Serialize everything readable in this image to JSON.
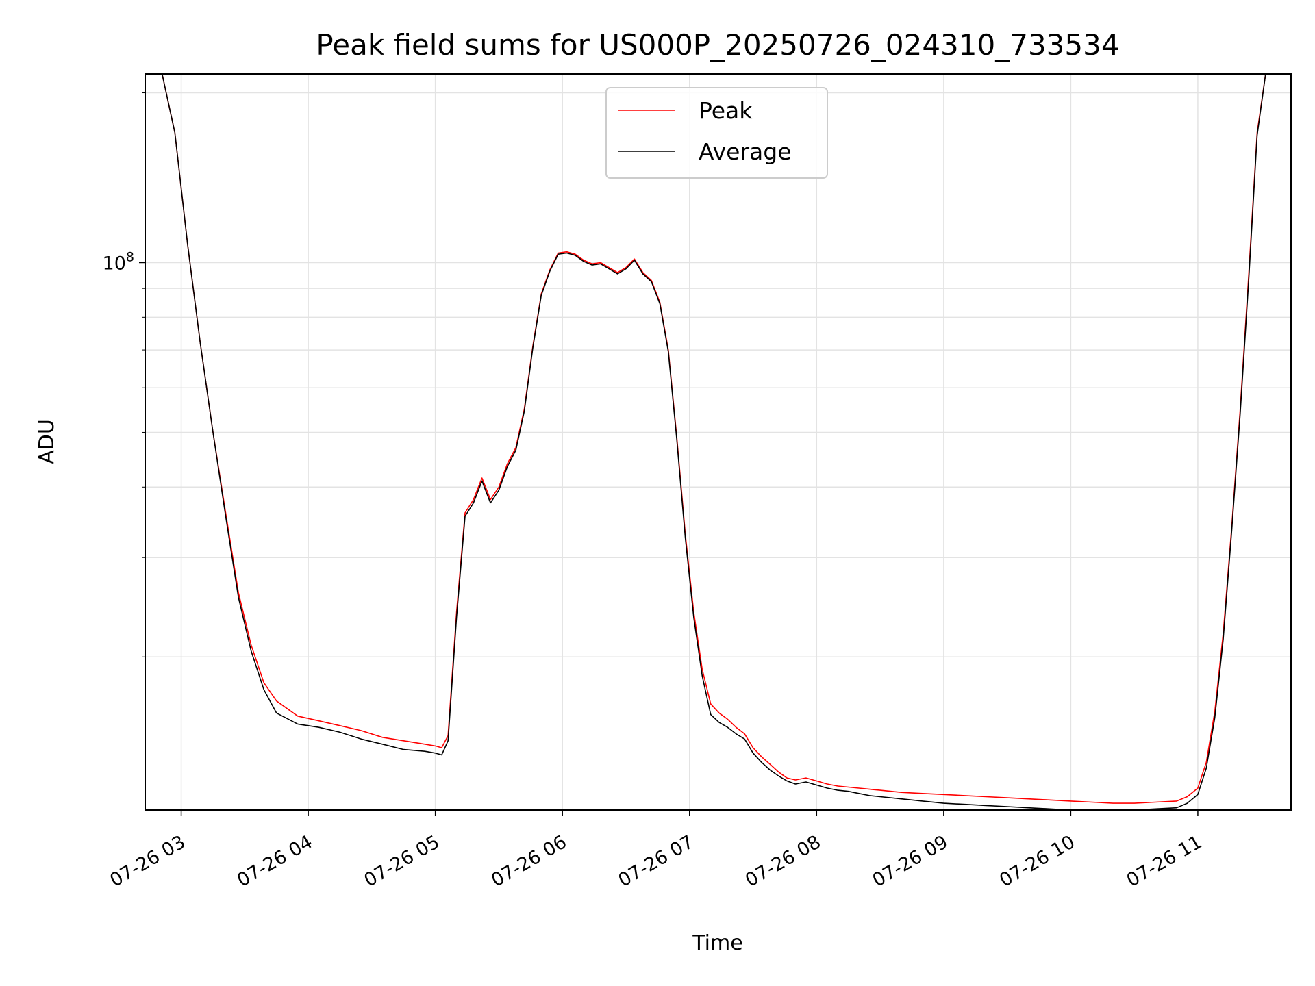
{
  "chart_data": {
    "type": "line",
    "title": "Peak field sums for US000P_20250726_024310_733534",
    "xlabel": "Time",
    "ylabel": "ADU",
    "x_tick_labels": [
      "07-26 03",
      "07-26 04",
      "07-26 05",
      "07-26 06",
      "07-26 07",
      "07-26 08",
      "07-26 09",
      "07-26 10",
      "07-26 11"
    ],
    "xlim": [
      "2025-07-26 02:43",
      "2025-07-26 11:44"
    ],
    "y_scale": "log",
    "ylim": [
      10700000,
      216000000
    ],
    "y_major_tick_label": "10^8",
    "grid": true,
    "legend": {
      "placement": "upper center",
      "entries": [
        "Peak",
        "Average"
      ]
    },
    "colors": {
      "Peak": "#ff0000",
      "Average": "#000000"
    },
    "series": [
      {
        "name": "Peak",
        "color": "#ff0000",
        "x": [
          "02:43",
          "02:51",
          "02:57",
          "03:03",
          "03:09",
          "03:15",
          "03:21",
          "03:27",
          "03:33",
          "03:39",
          "03:45",
          "03:55",
          "04:05",
          "04:15",
          "04:25",
          "04:35",
          "04:45",
          "04:55",
          "05:00",
          "05:03",
          "05:06",
          "05:10",
          "05:14",
          "05:18",
          "05:22",
          "05:26",
          "05:30",
          "05:34",
          "05:38",
          "05:42",
          "05:46",
          "05:50",
          "05:54",
          "05:58",
          "06:02",
          "06:06",
          "06:10",
          "06:14",
          "06:18",
          "06:22",
          "06:26",
          "06:30",
          "06:34",
          "06:38",
          "06:42",
          "06:46",
          "06:50",
          "06:54",
          "06:58",
          "07:02",
          "07:06",
          "07:10",
          "07:14",
          "07:18",
          "07:22",
          "07:26",
          "07:30",
          "07:34",
          "07:38",
          "07:42",
          "07:46",
          "07:50",
          "07:55",
          "08:00",
          "08:05",
          "08:10",
          "08:15",
          "08:20",
          "08:25",
          "08:30",
          "08:40",
          "08:50",
          "09:00",
          "09:10",
          "09:20",
          "09:30",
          "09:40",
          "09:50",
          "10:00",
          "10:10",
          "10:20",
          "10:30",
          "10:40",
          "10:50",
          "10:55",
          "11:00",
          "11:04",
          "11:08",
          "11:12",
          "11:16",
          "11:20",
          "11:24",
          "11:28",
          "11:32",
          "11:36",
          "11:40",
          "11:44"
        ],
        "y": [
          216000000,
          216000000,
          170000000,
          108000000,
          72000000,
          50000000,
          36000000,
          26000000,
          21000000,
          18000000,
          16700000,
          15700000,
          15400000,
          15100000,
          14800000,
          14400000,
          14200000,
          14000000,
          13900000,
          13800000,
          14500000,
          24000000,
          36000000,
          38000000,
          41500000,
          38000000,
          40000000,
          44000000,
          47000000,
          55000000,
          71000000,
          88000000,
          97000000,
          104000000,
          104500000,
          103500000,
          101000000,
          99500000,
          100000000,
          98000000,
          96000000,
          98000000,
          101500000,
          96000000,
          93000000,
          85000000,
          70000000,
          49000000,
          33000000,
          24000000,
          19000000,
          16500000,
          15900000,
          15500000,
          15000000,
          14600000,
          13800000,
          13300000,
          12900000,
          12500000,
          12200000,
          12100000,
          12200000,
          12050000,
          11900000,
          11800000,
          11750000,
          11700000,
          11650000,
          11600000,
          11500000,
          11450000,
          11400000,
          11350000,
          11300000,
          11250000,
          11200000,
          11150000,
          11100000,
          11050000,
          11000000,
          11000000,
          11050000,
          11100000,
          11300000,
          11700000,
          13000000,
          16000000,
          22000000,
          34000000,
          55000000,
          95000000,
          170000000,
          216000000,
          216000000,
          216000000,
          216000000
        ]
      },
      {
        "name": "Average",
        "color": "#000000",
        "x": [
          "02:43",
          "02:51",
          "02:57",
          "03:03",
          "03:09",
          "03:15",
          "03:21",
          "03:27",
          "03:33",
          "03:39",
          "03:45",
          "03:55",
          "04:05",
          "04:15",
          "04:25",
          "04:35",
          "04:45",
          "04:55",
          "05:00",
          "05:03",
          "05:06",
          "05:10",
          "05:14",
          "05:18",
          "05:22",
          "05:26",
          "05:30",
          "05:34",
          "05:38",
          "05:42",
          "05:46",
          "05:50",
          "05:54",
          "05:58",
          "06:02",
          "06:06",
          "06:10",
          "06:14",
          "06:18",
          "06:22",
          "06:26",
          "06:30",
          "06:34",
          "06:38",
          "06:42",
          "06:46",
          "06:50",
          "06:54",
          "06:58",
          "07:02",
          "07:06",
          "07:10",
          "07:14",
          "07:18",
          "07:22",
          "07:26",
          "07:30",
          "07:34",
          "07:38",
          "07:42",
          "07:46",
          "07:50",
          "07:55",
          "08:00",
          "08:05",
          "08:10",
          "08:15",
          "08:20",
          "08:25",
          "08:30",
          "08:40",
          "08:50",
          "09:00",
          "09:10",
          "09:20",
          "09:30",
          "09:40",
          "09:50",
          "10:00",
          "10:10",
          "10:20",
          "10:30",
          "10:40",
          "10:50",
          "10:55",
          "11:00",
          "11:04",
          "11:08",
          "11:12",
          "11:16",
          "11:20",
          "11:24",
          "11:28",
          "11:32",
          "11:36",
          "11:40",
          "11:44"
        ],
        "y": [
          216000000,
          216000000,
          170000000,
          108000000,
          72000000,
          50000000,
          35500000,
          25500000,
          20500000,
          17500000,
          15900000,
          15200000,
          15000000,
          14700000,
          14300000,
          14000000,
          13700000,
          13600000,
          13500000,
          13400000,
          14200000,
          23500000,
          35500000,
          37500000,
          41000000,
          37500000,
          39500000,
          43500000,
          46500000,
          54500000,
          70500000,
          87500000,
          96500000,
          103500000,
          104000000,
          103000000,
          100500000,
          99000000,
          99500000,
          97500000,
          95500000,
          97500000,
          101000000,
          95500000,
          92500000,
          84500000,
          69500000,
          48500000,
          32500000,
          23500000,
          18500000,
          15800000,
          15300000,
          15000000,
          14600000,
          14300000,
          13500000,
          13000000,
          12600000,
          12300000,
          12050000,
          11900000,
          12000000,
          11850000,
          11700000,
          11600000,
          11550000,
          11450000,
          11350000,
          11300000,
          11200000,
          11100000,
          11000000,
          10950000,
          10900000,
          10850000,
          10800000,
          10750000,
          10700000,
          10700000,
          10700000,
          10700000,
          10750000,
          10800000,
          11000000,
          11400000,
          12700000,
          15600000,
          21500000,
          33500000,
          54000000,
          93000000,
          168000000,
          216000000,
          216000000,
          216000000,
          216000000
        ]
      }
    ]
  }
}
